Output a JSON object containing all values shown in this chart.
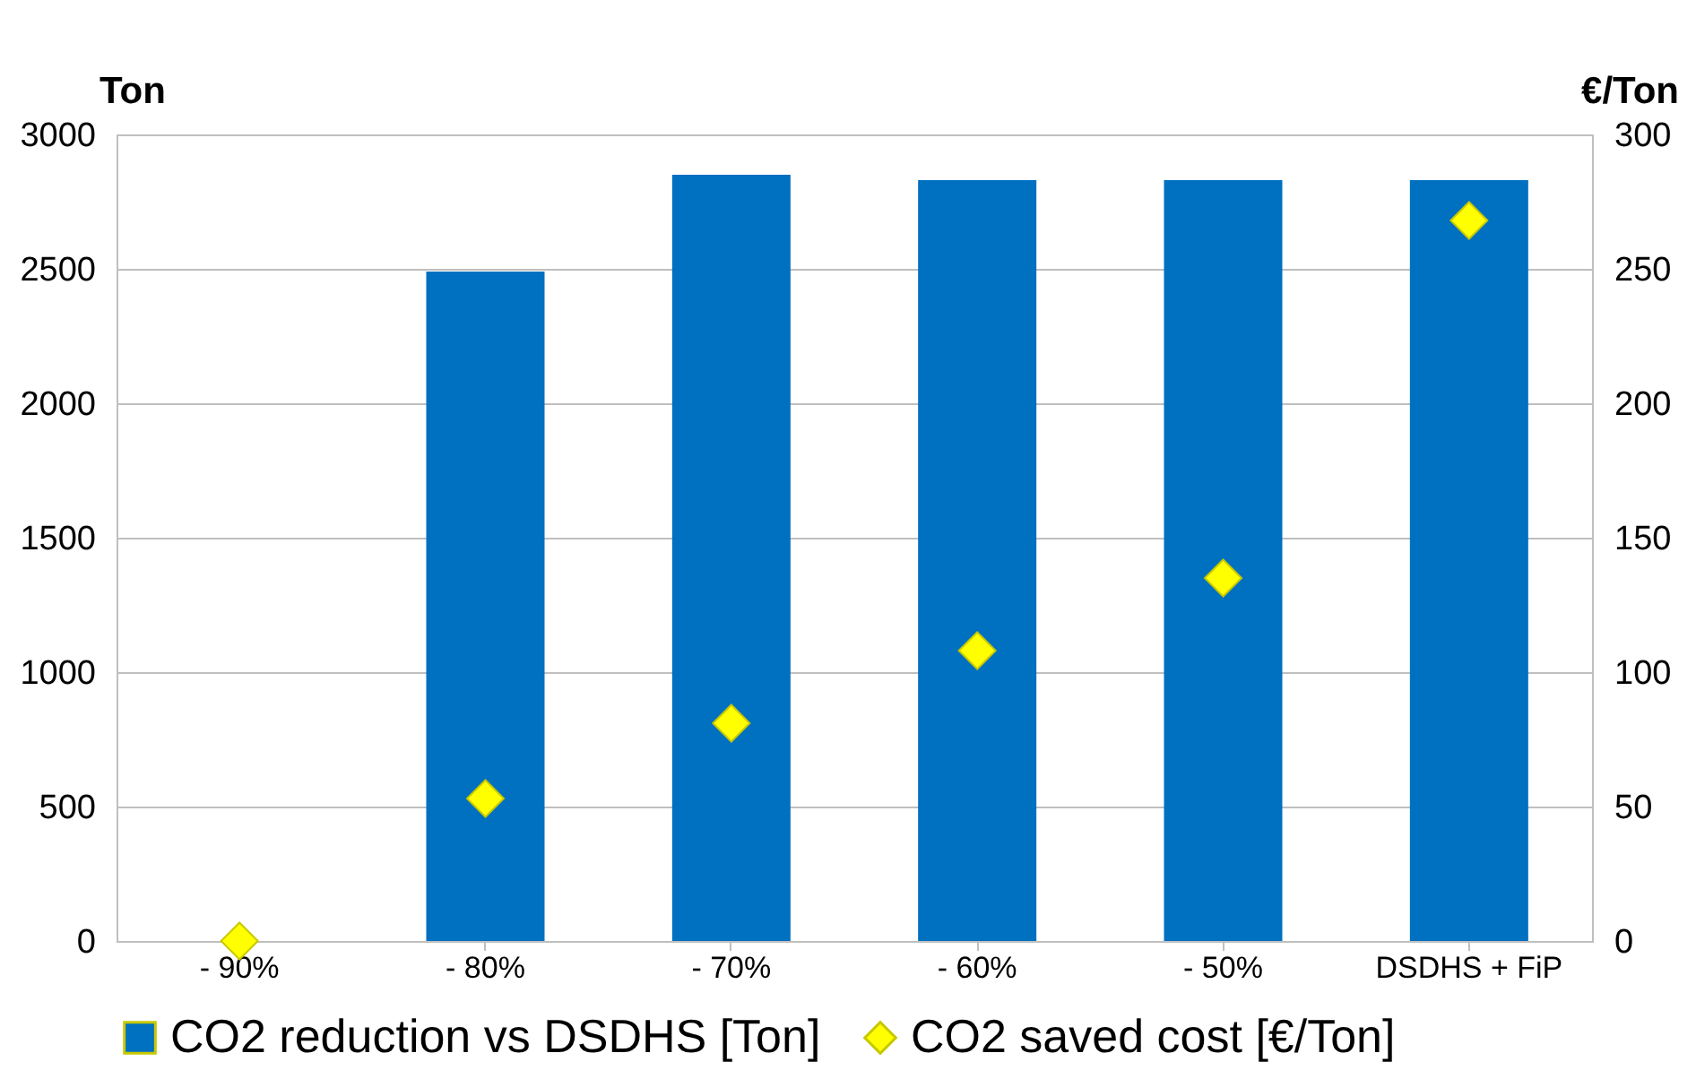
{
  "chart_data": {
    "type": "bar",
    "categories": [
      "- 90%",
      "- 80%",
      "- 70%",
      "- 60%",
      "- 50%",
      "DSDHS + FiP"
    ],
    "ylabel": "Ton",
    "y2label": "€/Ton",
    "ylim": [
      0,
      3000
    ],
    "yticks": [
      0,
      500,
      1000,
      1500,
      2000,
      2500,
      3000
    ],
    "y2lim": [
      0,
      300
    ],
    "y2ticks": [
      0,
      50,
      100,
      150,
      200,
      250,
      300
    ],
    "grid": "y",
    "legend": "bottom",
    "series": [
      {
        "name": "CO2 reduction vs DSDHS [Ton]",
        "color": "#0070c0",
        "values": [
          0,
          2490,
          2850,
          2830,
          2830,
          2830
        ]
      },
      {
        "name": "CO2 saved cost [€/Ton]",
        "type": "scatter",
        "axis": "y2",
        "marker": "diamond",
        "color": "#ffff00",
        "values": [
          0,
          53,
          81,
          108,
          135,
          268
        ]
      }
    ]
  }
}
